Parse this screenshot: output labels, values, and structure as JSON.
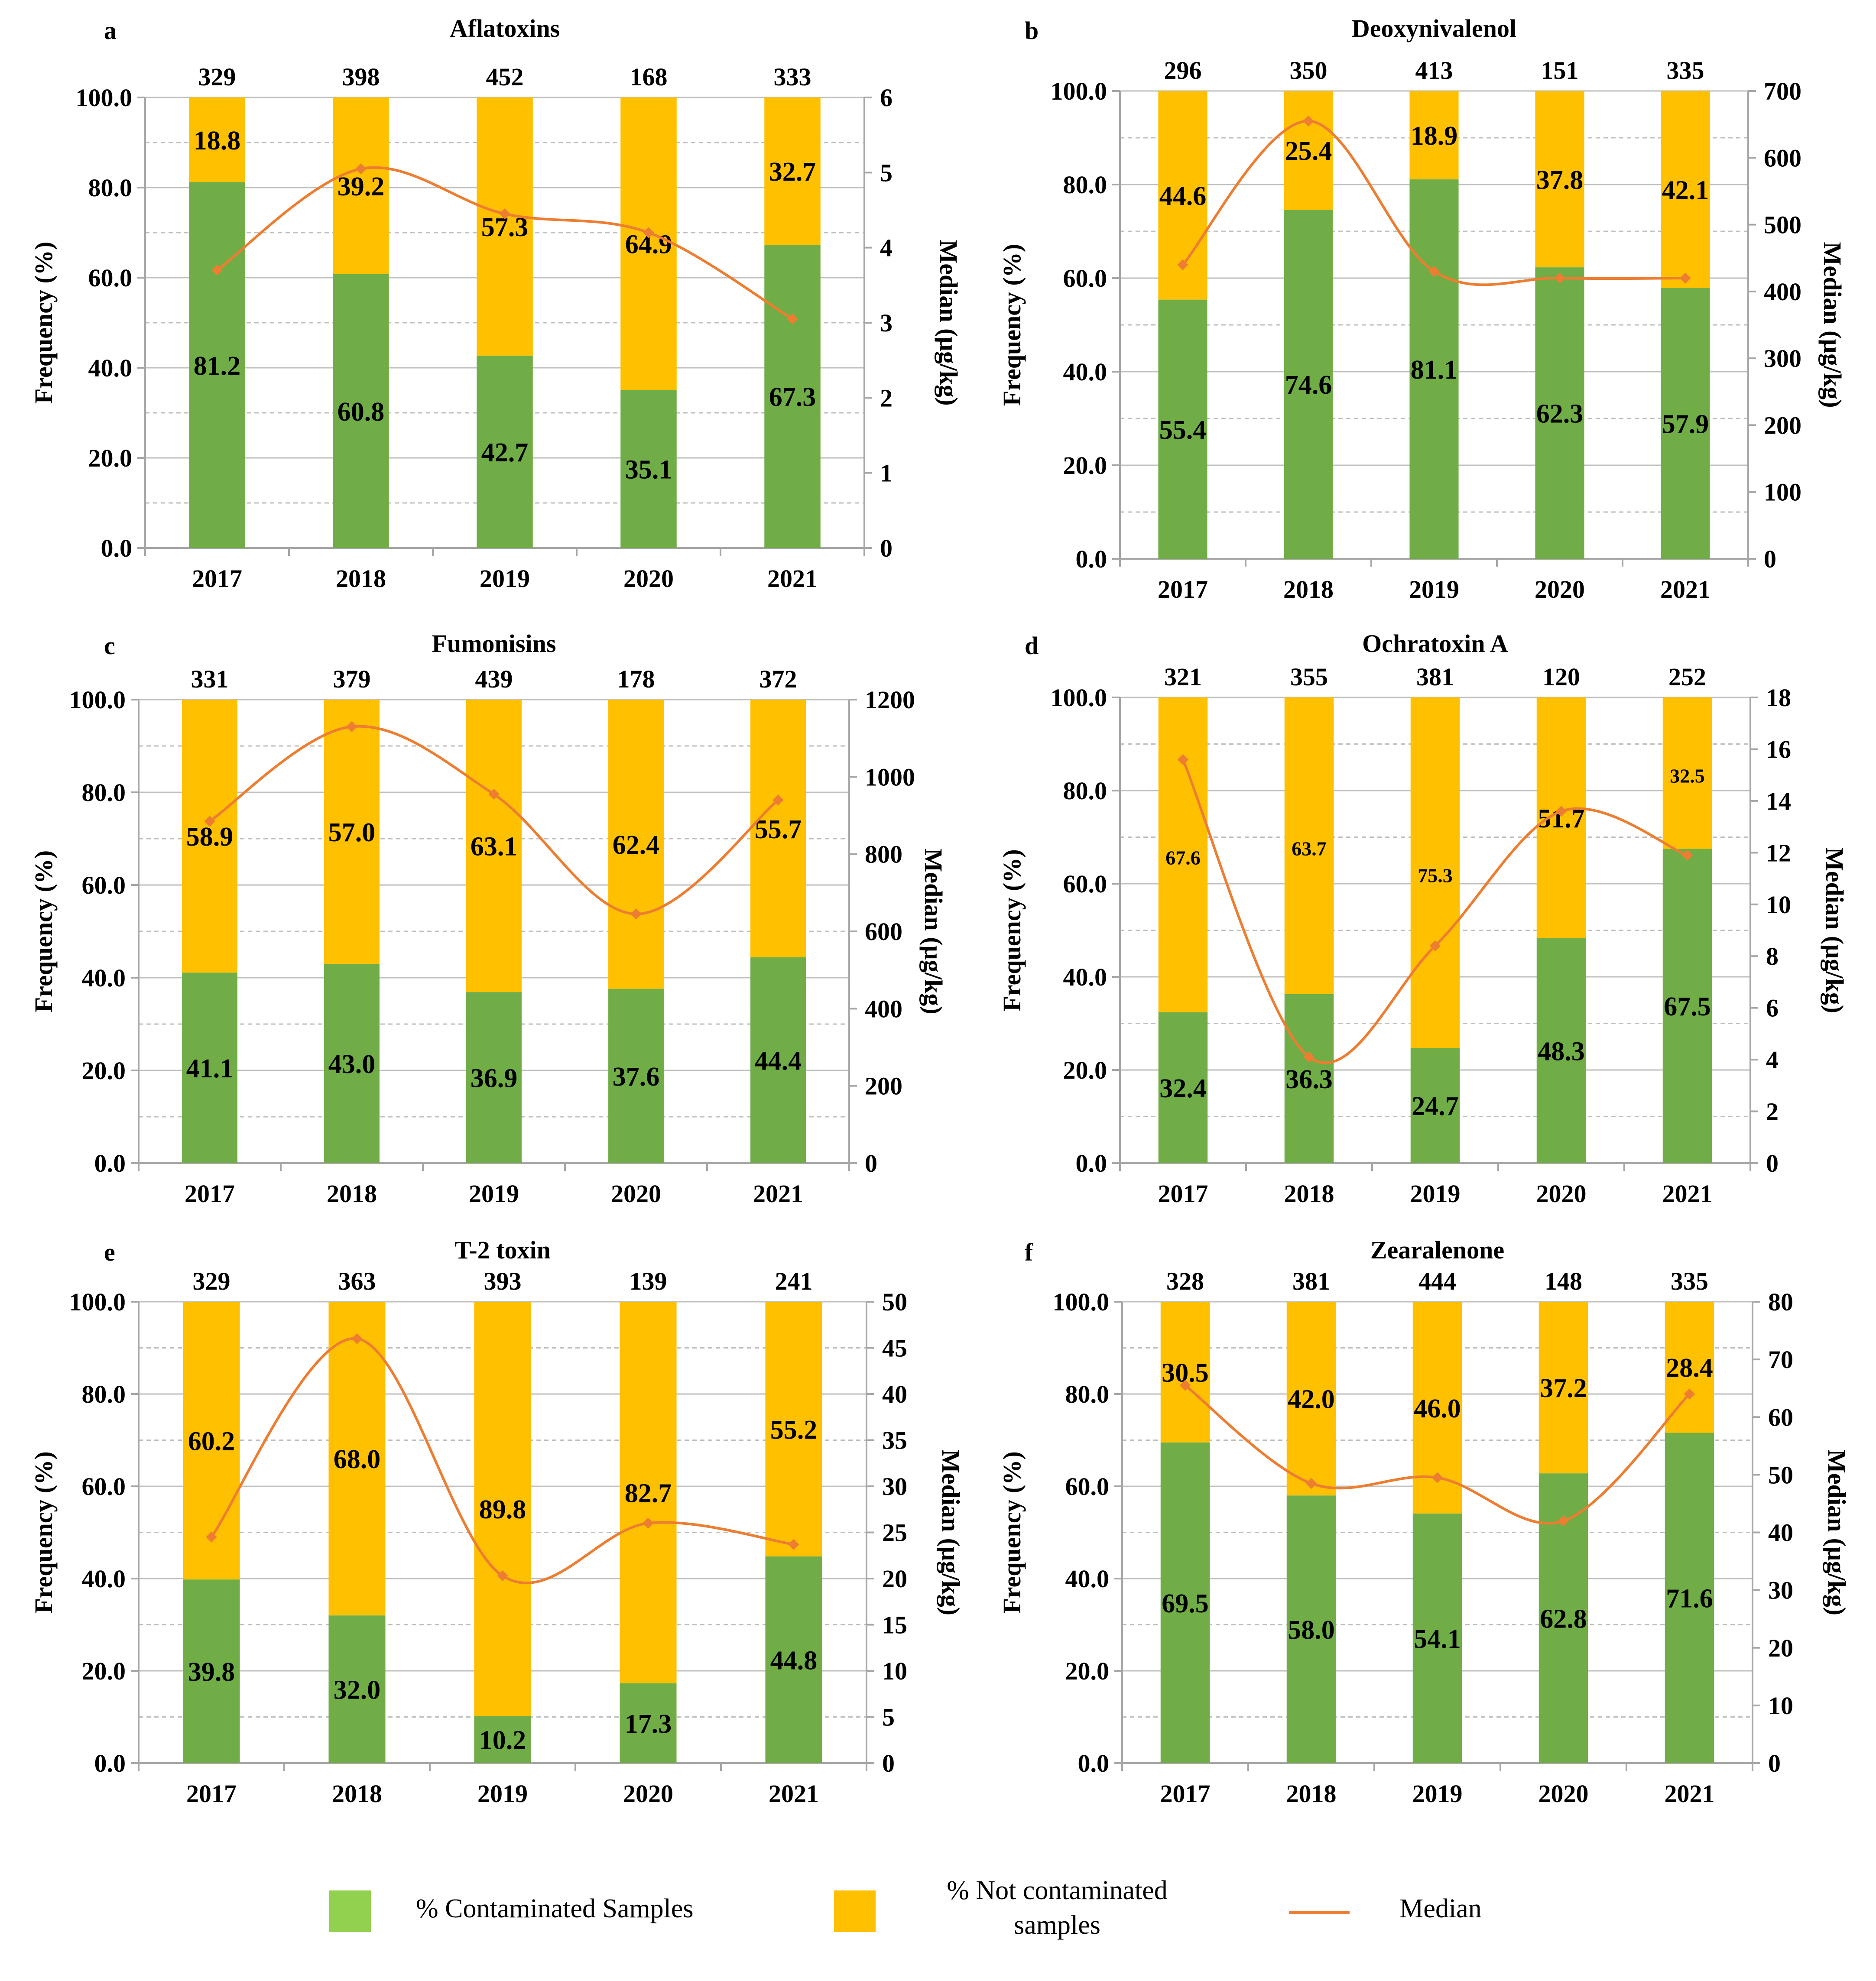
{
  "colors": {
    "contaminated": "#70AD47",
    "not_contaminated": "#FFC000",
    "median": "#ED7D31",
    "grid": "#BFBFBF",
    "axis": "#A6A6A6",
    "legend_contaminated": "#92D050"
  },
  "categories": [
    "2017",
    "2018",
    "2019",
    "2020",
    "2021"
  ],
  "chart_data": [
    {
      "type": "bar",
      "panel_letter": "a",
      "title": "Aflatoxins",
      "ylabel": "Frequency (%)",
      "y2label": "Median (µg/kg)",
      "ylim": [
        0,
        100
      ],
      "y2lim": [
        0,
        6
      ],
      "y2_ticks": [
        "0",
        "1",
        "2",
        "3",
        "4",
        "5",
        "6"
      ],
      "sample_counts": [
        "329",
        "398",
        "452",
        "168",
        "333"
      ],
      "contaminated": [
        81.2,
        60.8,
        42.7,
        35.1,
        67.3
      ],
      "not_contaminated": [
        18.8,
        39.2,
        57.3,
        64.9,
        32.7
      ],
      "median": [
        3.7,
        5.05,
        4.45,
        4.2,
        3.05
      ]
    },
    {
      "type": "bar",
      "panel_letter": "b",
      "title": "Deoxynivalenol",
      "ylabel": "Frequency (%)",
      "y2label": "Median (µg/kg)",
      "ylim": [
        0,
        100
      ],
      "y2lim": [
        0,
        700
      ],
      "y2_ticks": [
        "0",
        "100",
        "200",
        "300",
        "400",
        "500",
        "600",
        "700"
      ],
      "sample_counts": [
        "296",
        "350",
        "413",
        "151",
        "335"
      ],
      "contaminated": [
        55.4,
        74.6,
        81.1,
        62.3,
        57.9
      ],
      "not_contaminated": [
        44.6,
        25.4,
        18.9,
        37.8,
        42.1
      ],
      "median": [
        440,
        655,
        430,
        420,
        420
      ]
    },
    {
      "type": "bar",
      "panel_letter": "c",
      "title": "Fumonisins",
      "ylabel": "Frequency (%)",
      "y2label": "Median (µg/kg)",
      "ylim": [
        0,
        100
      ],
      "y2lim": [
        0,
        1200
      ],
      "y2_ticks": [
        "0",
        "200",
        "400",
        "600",
        "800",
        "1000",
        "1200"
      ],
      "sample_counts": [
        "331",
        "379",
        "439",
        "178",
        "372"
      ],
      "contaminated": [
        41.1,
        43.0,
        36.9,
        37.6,
        44.4
      ],
      "not_contaminated": [
        58.9,
        57.0,
        63.1,
        62.4,
        55.7
      ],
      "median": [
        885,
        1130,
        955,
        645,
        940
      ]
    },
    {
      "type": "bar",
      "panel_letter": "d",
      "title": "Ochratoxin A",
      "ylabel": "Frequency (%)",
      "y2label": "Median (µg/kg)",
      "ylim": [
        0,
        100
      ],
      "y2lim": [
        0,
        18
      ],
      "y2_ticks": [
        "0",
        "2",
        "4",
        "6",
        "8",
        "10",
        "12",
        "14",
        "16",
        "18"
      ],
      "sample_counts": [
        "321",
        "355",
        "381",
        "120",
        "252"
      ],
      "contaminated": [
        32.4,
        36.3,
        24.7,
        48.3,
        67.5
      ],
      "not_contaminated": [
        67.6,
        63.7,
        75.3,
        51.7,
        32.5
      ],
      "median": [
        15.6,
        4.1,
        8.4,
        13.6,
        11.9
      ]
    },
    {
      "type": "bar",
      "panel_letter": "e",
      "title": "T-2 toxin",
      "ylabel": "Frequency (%)",
      "y2label": "Median (µg/kg)",
      "ylim": [
        0,
        100
      ],
      "y2lim": [
        0,
        50
      ],
      "y2_ticks": [
        "0",
        "5",
        "10",
        "15",
        "20",
        "25",
        "30",
        "35",
        "40",
        "45",
        "50"
      ],
      "sample_counts": [
        "329",
        "363",
        "393",
        "139",
        "241"
      ],
      "contaminated": [
        39.8,
        32.0,
        10.2,
        17.3,
        44.8
      ],
      "not_contaminated": [
        60.2,
        68.0,
        89.8,
        82.7,
        55.2
      ],
      "median": [
        24.5,
        46,
        20.3,
        26,
        23.7
      ]
    },
    {
      "type": "bar",
      "panel_letter": "f",
      "title": "Zearalenone",
      "ylabel": "Frequency (%)",
      "y2label": "Median (µg/kg)",
      "ylim": [
        0,
        100
      ],
      "y2lim": [
        0,
        80
      ],
      "y2_ticks": [
        "0",
        "10",
        "20",
        "30",
        "40",
        "50",
        "60",
        "70",
        "80"
      ],
      "sample_counts": [
        "328",
        "381",
        "444",
        "148",
        "335"
      ],
      "contaminated": [
        69.5,
        58.0,
        54.1,
        62.8,
        71.6
      ],
      "not_contaminated": [
        30.5,
        42.0,
        46.0,
        37.2,
        28.4
      ],
      "median": [
        65.5,
        48.5,
        49.5,
        42,
        64
      ]
    }
  ],
  "legend": {
    "contaminated_label": "% Contaminated Samples",
    "not_contaminated_line1": "% Not contaminated",
    "not_contaminated_line2": "samples",
    "median_label": "Median"
  }
}
